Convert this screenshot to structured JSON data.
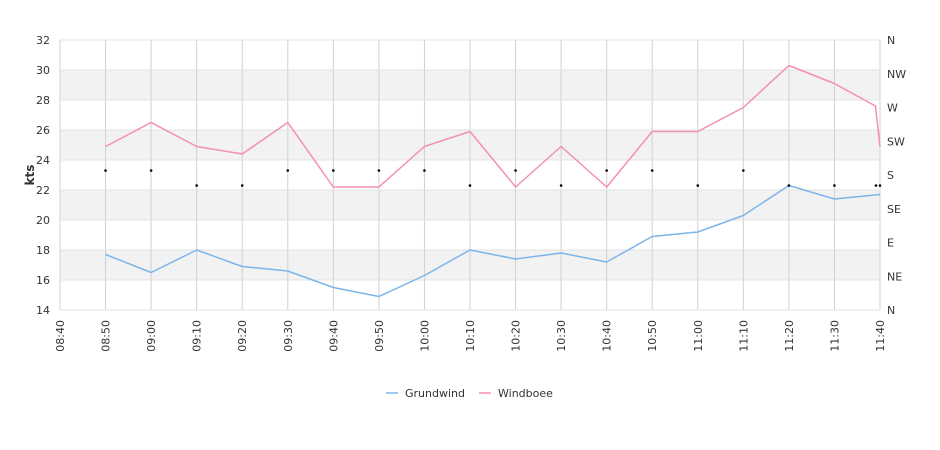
{
  "chart_data": {
    "type": "line",
    "ylabel": "kts",
    "ylim": [
      14,
      32
    ],
    "y_ticks": [
      "14",
      "16",
      "18",
      "20",
      "22",
      "24",
      "26",
      "28",
      "30",
      "32"
    ],
    "x": [
      "08:40",
      "08:50",
      "09:00",
      "09:10",
      "09:20",
      "09:30",
      "09:40",
      "09:50",
      "10:00",
      "10:10",
      "10:20",
      "10:30",
      "10:40",
      "10:50",
      "11:00",
      "11:10",
      "11:20",
      "11:30",
      "11:40"
    ],
    "y2_ticks": [
      "N",
      "NE",
      "E",
      "SE",
      "S",
      "SW",
      "W",
      "NW",
      "N"
    ],
    "series": [
      {
        "name": "Grundwind",
        "color": "#7cb5ec",
        "x": [
          "08:50",
          "09:00",
          "09:10",
          "09:20",
          "09:30",
          "09:40",
          "09:50",
          "10:00",
          "10:10",
          "10:20",
          "10:30",
          "10:40",
          "10:50",
          "11:00",
          "11:10",
          "11:20",
          "11:30",
          "11:40"
        ],
        "values": [
          17.7,
          16.5,
          18.0,
          16.9,
          16.6,
          15.5,
          14.9,
          16.3,
          18.0,
          17.4,
          17.8,
          17.2,
          18.9,
          19.2,
          20.3,
          22.3,
          21.4,
          21.7
        ]
      },
      {
        "name": "Windboee",
        "color": "#f48fb1",
        "x": [
          "08:50",
          "09:00",
          "09:10",
          "09:20",
          "09:30",
          "09:40",
          "09:50",
          "10:00",
          "10:10",
          "10:20",
          "10:30",
          "10:40",
          "10:50",
          "11:00",
          "11:10",
          "11:20",
          "11:30",
          "11:39",
          "11:40"
        ],
        "values": [
          24.9,
          26.5,
          24.9,
          24.4,
          26.5,
          22.2,
          22.2,
          24.9,
          25.9,
          22.2,
          24.9,
          22.2,
          25.9,
          25.9,
          27.5,
          30.3,
          29.1,
          27.6,
          24.9
        ]
      }
    ],
    "direction_markers": {
      "x": [
        "08:50",
        "09:00",
        "09:10",
        "09:20",
        "09:30",
        "09:40",
        "09:50",
        "10:00",
        "10:10",
        "10:20",
        "10:30",
        "10:40",
        "10:50",
        "11:00",
        "11:10",
        "11:20",
        "11:30",
        "11:40",
        "11:40"
      ],
      "values": [
        23.3,
        23.3,
        22.3,
        22.3,
        23.3,
        23.3,
        23.3,
        23.3,
        22.3,
        23.3,
        22.3,
        23.3,
        23.3,
        22.3,
        23.3,
        22.3,
        22.3,
        22.3,
        22.3
      ]
    },
    "grid": true,
    "alternating_bands": true,
    "legend_placement": "bottom"
  }
}
